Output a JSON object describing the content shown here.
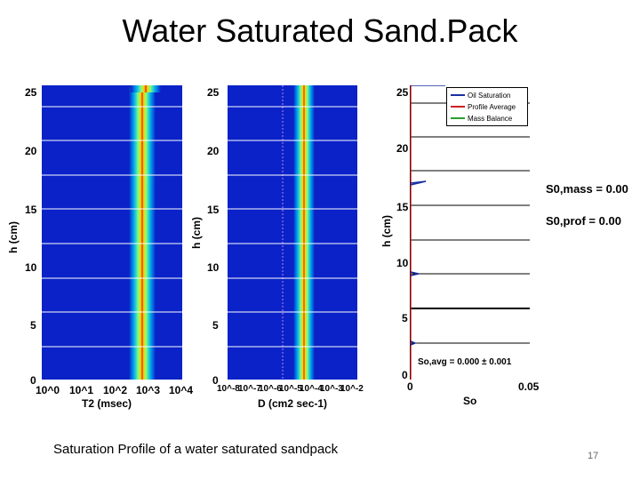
{
  "title": "Water Saturated Sand.Pack",
  "caption": "Saturation Profile of a water saturated sandpack",
  "page_number": "17",
  "left_plot": {
    "ylabel": "h (cm)",
    "xlabel": "T2 (msec)",
    "y_ticks": [
      "25",
      "20",
      "15",
      "10",
      "5",
      "0"
    ],
    "x_ticks": [
      "10^0",
      "10^1",
      "10^2",
      "10^3",
      "10^4"
    ]
  },
  "middle_plot": {
    "ylabel": "h (cm)",
    "xlabel": "D (cm2 sec-1)",
    "y_ticks": [
      "25",
      "20",
      "15",
      "10",
      "5",
      "0"
    ],
    "x_ticks": [
      "10^-8",
      "10^-7",
      "10^-6",
      "10^-5",
      "10^-4",
      "10^-3",
      "10^-2"
    ]
  },
  "right_plot": {
    "ylabel": "h (cm)",
    "xlabel": "So",
    "y_ticks": [
      "25",
      "20",
      "15",
      "10",
      "5",
      "0"
    ],
    "x_ticks": [
      "0",
      "0.05"
    ],
    "legend": [
      {
        "label": "Oil Saturation",
        "color": "#1a2fa0"
      },
      {
        "label": "Profile Average",
        "color": "#d02020"
      },
      {
        "label": "Mass Balance",
        "color": "#2aa02a"
      }
    ],
    "avg_label": "So,avg",
    "avg_value": "= 0.000 ± 0.001"
  },
  "stats": {
    "mass_label": "S0,mass",
    "mass_value": "= 0.00",
    "prof_label": "S0,prof",
    "prof_value": "= 0.00"
  }
}
